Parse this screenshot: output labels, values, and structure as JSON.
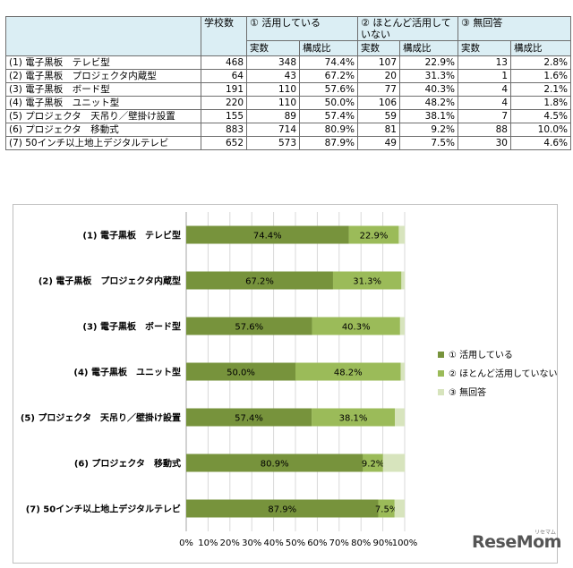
{
  "table": {
    "headers": {
      "school_count": "学校数",
      "groups": [
        "① 活用している",
        "② ほとんど活用していない",
        "③ 無回答"
      ],
      "sub": [
        "実数",
        "構成比"
      ]
    },
    "rows": [
      {
        "label": "(1) 電子黒板　テレビ型",
        "count": "468",
        "v1": "348",
        "p1": "74.4%",
        "v2": "107",
        "p2": "22.9%",
        "v3": "13",
        "p3": "2.8%"
      },
      {
        "label": "(2) 電子黒板　プロジェクタ内蔵型",
        "count": "64",
        "v1": "43",
        "p1": "67.2%",
        "v2": "20",
        "p2": "31.3%",
        "v3": "1",
        "p3": "1.6%"
      },
      {
        "label": "(3) 電子黒板　ボード型",
        "count": "191",
        "v1": "110",
        "p1": "57.6%",
        "v2": "77",
        "p2": "40.3%",
        "v3": "4",
        "p3": "2.1%"
      },
      {
        "label": "(4) 電子黒板　ユニット型",
        "count": "220",
        "v1": "110",
        "p1": "50.0%",
        "v2": "106",
        "p2": "48.2%",
        "v3": "4",
        "p3": "1.8%"
      },
      {
        "label": "(5) プロジェクタ　天吊り／壁掛け設置",
        "count": "155",
        "v1": "89",
        "p1": "57.4%",
        "v2": "59",
        "p2": "38.1%",
        "v3": "7",
        "p3": "4.5%"
      },
      {
        "label": "(6) プロジェクタ　移動式",
        "count": "883",
        "v1": "714",
        "p1": "80.9%",
        "v2": "81",
        "p2": "9.2%",
        "v3": "88",
        "p3": "10.0%"
      },
      {
        "label": "(7) 50インチ以上地上デジタルテレビ",
        "count": "652",
        "v1": "573",
        "p1": "87.9%",
        "v2": "49",
        "p2": "7.5%",
        "v3": "30",
        "p3": "4.6%"
      }
    ]
  },
  "chart_data": {
    "type": "bar",
    "orientation": "horizontal",
    "stacked": true,
    "categories": [
      "(1) 電子黒板　テレビ型",
      "(2) 電子黒板　プロジェクタ内蔵型",
      "(3) 電子黒板　ボード型",
      "(4) 電子黒板　ユニット型",
      "(5) プロジェクタ　天吊り／壁掛け設置",
      "(6) プロジェクタ　移動式",
      "(7) 50インチ以上地上デジタルテレビ"
    ],
    "series": [
      {
        "name": "① 活用している",
        "values": [
          74.4,
          67.2,
          57.6,
          50.0,
          57.4,
          80.9,
          87.9
        ],
        "labels": [
          "74.4%",
          "67.2%",
          "57.6%",
          "50.0%",
          "57.4%",
          "80.9%",
          "87.9%"
        ],
        "color": "#77933c"
      },
      {
        "name": "② ほとんど活用していない",
        "values": [
          22.9,
          31.3,
          40.3,
          48.2,
          38.1,
          9.2,
          7.5
        ],
        "labels": [
          "22.9%",
          "31.3%",
          "40.3%",
          "48.2%",
          "38.1%",
          "9.2%",
          "7.5%"
        ],
        "color": "#9bbb59"
      },
      {
        "name": "③ 無回答",
        "values": [
          2.8,
          1.6,
          2.1,
          1.8,
          4.5,
          10.0,
          4.6
        ],
        "color": "#d7e4bd"
      }
    ],
    "x_ticks": [
      "0%",
      "10%",
      "20%",
      "30%",
      "40%",
      "50%",
      "60%",
      "70%",
      "80%",
      "90%",
      "100%"
    ],
    "xlim": [
      0,
      100
    ],
    "grid": "vertical",
    "legend": "right"
  },
  "watermark": "ReseMom",
  "watermark_ruby": "リセマム"
}
